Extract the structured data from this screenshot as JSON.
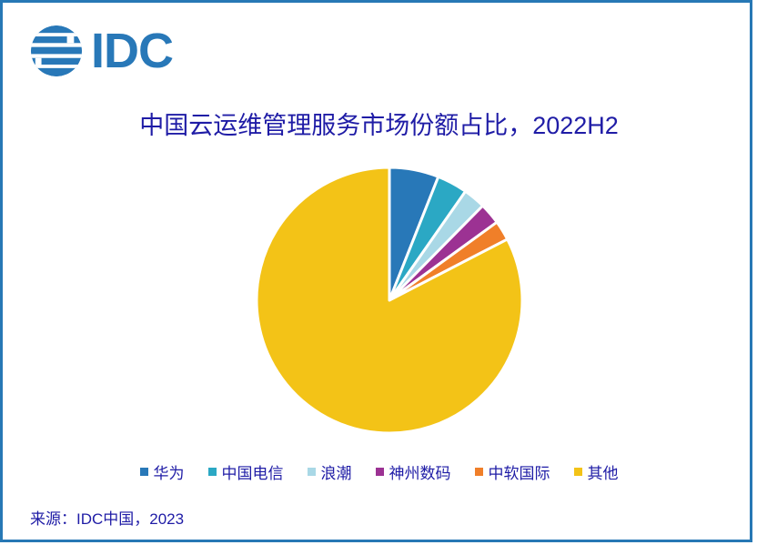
{
  "logo": {
    "text": "IDC"
  },
  "title": {
    "text": "中国云运维管理服务市场份额占比，2022H2"
  },
  "source": {
    "text": "来源：IDC中国，2023"
  },
  "colors": {
    "frame_border": "#2778B5",
    "logo_blue": "#2878B8",
    "text_navy": "#1F1CA6",
    "background": "#FFFFFF"
  },
  "chart_data": {
    "type": "pie",
    "title": "中国云运维管理服务市场份额占比，2022H2",
    "categories": [
      "华为",
      "中国电信",
      "浪潮",
      "神州数码",
      "中软国际",
      "其他"
    ],
    "values": [
      6.0,
      3.7,
      2.7,
      2.6,
      2.4,
      82.6
    ],
    "colors": [
      "#2878B8",
      "#2BA8C4",
      "#A9D8E6",
      "#9C3293",
      "#F07F29",
      "#F3C317"
    ],
    "start_angle_deg": 0,
    "direction": "clockwise",
    "slice_gap": "white 3px borders between slices",
    "legend_position": "bottom",
    "data_labels": false
  }
}
